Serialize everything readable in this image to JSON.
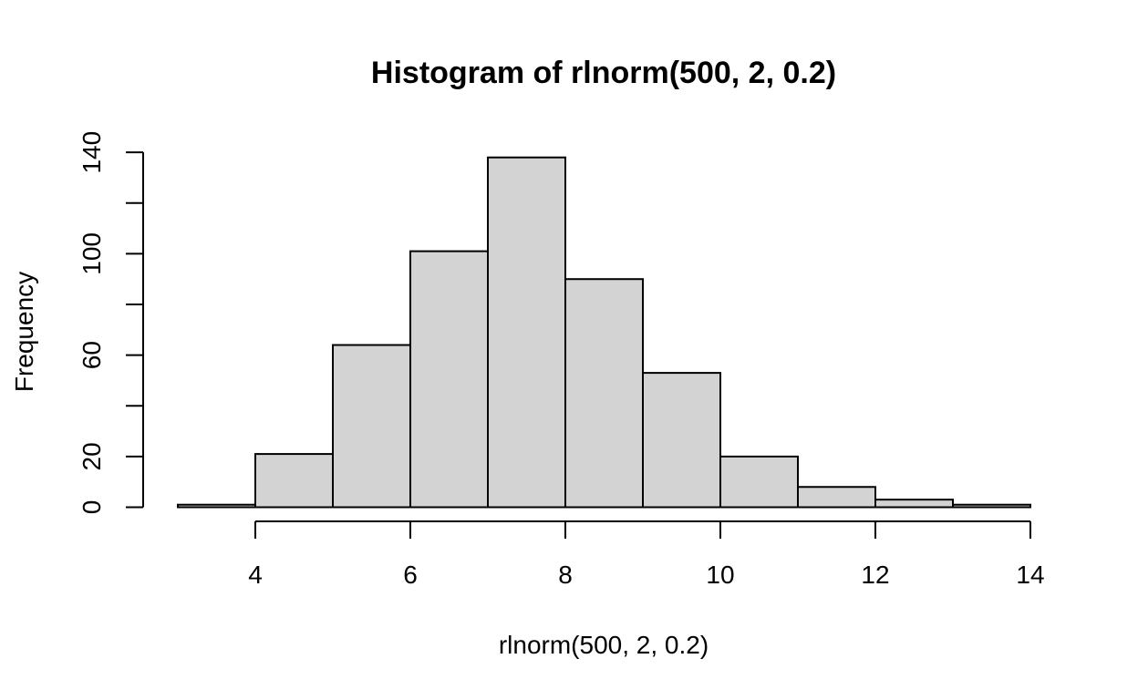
{
  "chart_data": {
    "type": "bar",
    "title": "Histogram of rlnorm(500, 2, 0.2)",
    "xlabel": "rlnorm(500, 2, 0.2)",
    "ylabel": "Frequency",
    "bins": [
      {
        "x0": 3,
        "x1": 4,
        "count": 1
      },
      {
        "x0": 4,
        "x1": 5,
        "count": 21
      },
      {
        "x0": 5,
        "x1": 6,
        "count": 64
      },
      {
        "x0": 6,
        "x1": 7,
        "count": 101
      },
      {
        "x0": 7,
        "x1": 8,
        "count": 138
      },
      {
        "x0": 8,
        "x1": 9,
        "count": 90
      },
      {
        "x0": 9,
        "x1": 10,
        "count": 53
      },
      {
        "x0": 10,
        "x1": 11,
        "count": 20
      },
      {
        "x0": 11,
        "x1": 12,
        "count": 8
      },
      {
        "x0": 12,
        "x1": 13,
        "count": 3
      },
      {
        "x0": 13,
        "x1": 14,
        "count": 1
      }
    ],
    "xlim": [
      3,
      14
    ],
    "ylim": [
      0,
      140
    ],
    "x_ticks": [
      4,
      6,
      8,
      10,
      12,
      14
    ],
    "y_ticks": [
      0,
      20,
      40,
      60,
      80,
      100,
      120,
      140
    ],
    "y_tick_labels": [
      "0",
      "20",
      "",
      "60",
      "",
      "100",
      "",
      "140"
    ],
    "x_tick_labels": [
      "4",
      "6",
      "8",
      "10",
      "12",
      "14"
    ],
    "grid": false,
    "colors": {
      "bar_fill": "#d3d3d3",
      "bar_stroke": "#000000",
      "axis": "#000000"
    }
  }
}
